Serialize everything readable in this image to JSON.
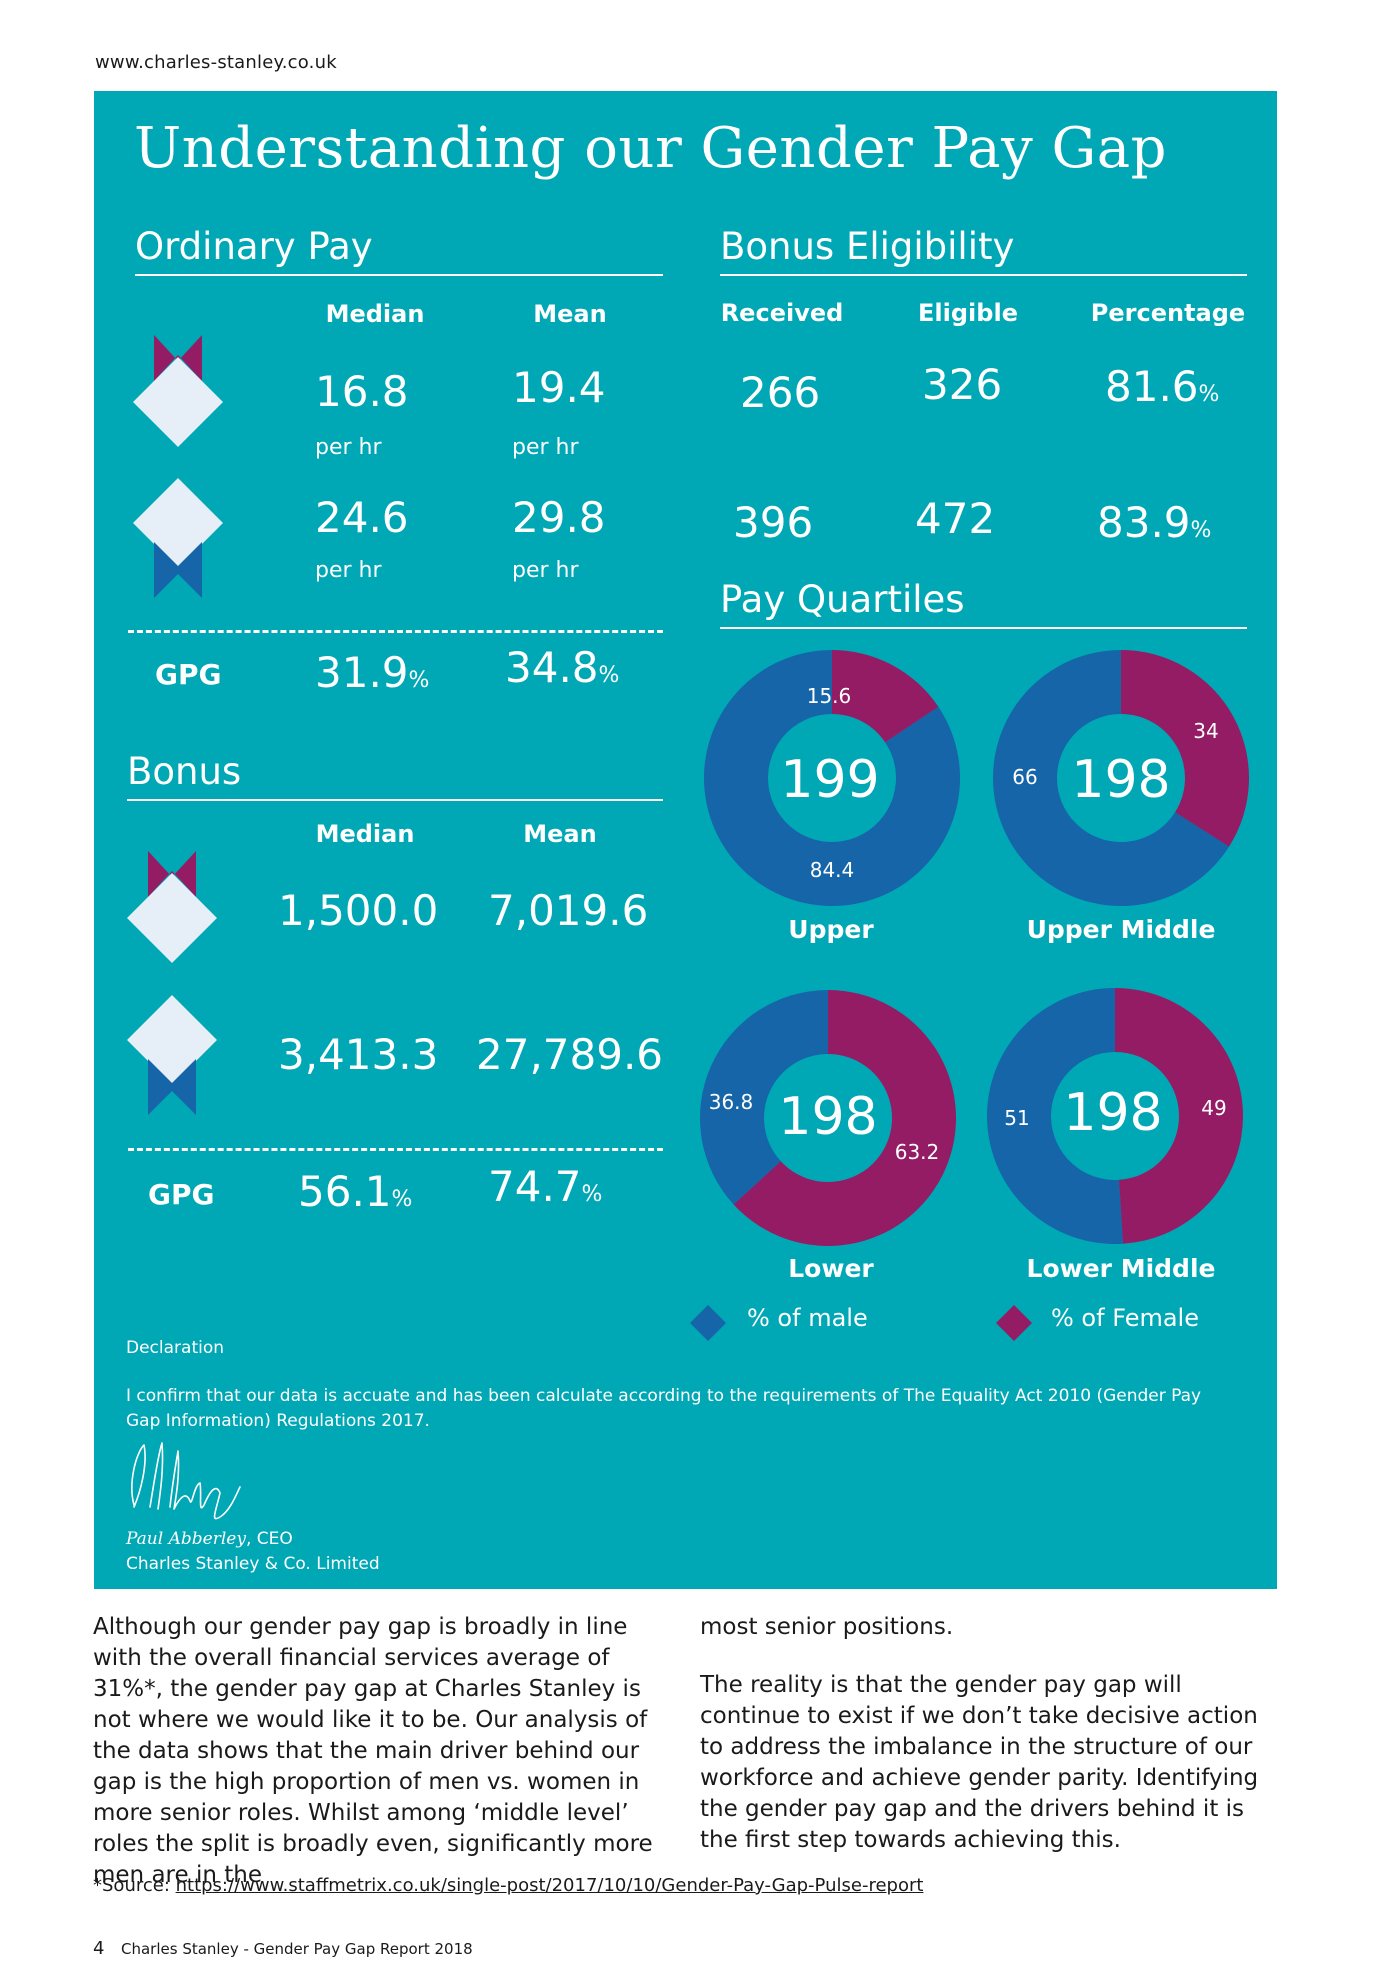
{
  "header": {
    "url": "www.charles-stanley.co.uk"
  },
  "panel": {
    "title": "Understanding our Gender Pay Gap",
    "colors": {
      "teal": "#00a7b5",
      "male_blue": "#1565a8",
      "female_magenta": "#941c64",
      "icon_light": "#e6eef8"
    },
    "ordinary_pay": {
      "heading": "Ordinary Pay",
      "col_median": "Median",
      "col_mean": "Mean",
      "female": {
        "median": "16.8",
        "mean": "19.4",
        "unit": "per hr"
      },
      "male": {
        "median": "24.6",
        "mean": "29.8",
        "unit": "per hr"
      },
      "gpg_label": "GPG",
      "gpg_median": "31.9",
      "gpg_mean": "34.8",
      "pct": "%"
    },
    "bonus": {
      "heading": "Bonus",
      "col_median": "Median",
      "col_mean": "Mean",
      "female": {
        "median": "1,500.0",
        "mean": "7,019.6"
      },
      "male": {
        "median": "3,413.3",
        "mean": "27,789.6"
      },
      "gpg_label": "GPG",
      "gpg_median": "56.1",
      "gpg_mean": "74.7",
      "pct": "%"
    },
    "bonus_eligibility": {
      "heading": "Bonus Eligibility",
      "col_received": "Received",
      "col_eligible": "Eligible",
      "col_percentage": "Percentage",
      "female": {
        "received": "266",
        "eligible": "326",
        "percentage": "81.6"
      },
      "male": {
        "received": "396",
        "eligible": "472",
        "percentage": "83.9"
      },
      "pct": "%"
    },
    "pay_quartiles": {
      "heading": "Pay Quartiles",
      "quartiles": [
        {
          "label": "Upper",
          "total": "199",
          "male": 84.4,
          "female": 15.6,
          "male_text": "84.4",
          "female_text": "15.6"
        },
        {
          "label": "Upper Middle",
          "total": "198",
          "male": 66,
          "female": 34,
          "male_text": "66",
          "female_text": "34"
        },
        {
          "label": "Lower",
          "total": "198",
          "male": 36.8,
          "female": 63.2,
          "male_text": "36.8",
          "female_text": "63.2"
        },
        {
          "label": "Lower Middle",
          "total": "198",
          "male": 51,
          "female": 49,
          "male_text": "51",
          "female_text": "49"
        }
      ],
      "legend_male": "% of  male",
      "legend_female": "% of  Female"
    },
    "declaration": {
      "heading": "Declaration",
      "text": "I confirm that our data is accuate and has been calculate according to the requirements of The Equality Act 2010 (Gender Pay Gap Information) Regulations 2017.",
      "signatory_name": "Paul Abberley",
      "signatory_role": ", CEO",
      "company": "Charles Stanley & Co. Limited"
    }
  },
  "body": {
    "col1": "Although our gender pay gap is broadly in line with the overall financial services average of 31%*, the gender pay gap at Charles Stanley is not where we would like it to be. Our analysis of the data shows that the main driver behind our gap is the high proportion of men vs. women in more senior roles. Whilst among ‘middle level’ roles the split is broadly even, significantly more men are in the",
    "col2_p1": "most senior positions.",
    "col2_p2": "The reality is that the gender pay gap will continue to exist if we don’t take decisive action to address the imbalance in the structure of our workforce and achieve gender parity. Identifying the gender pay gap and the drivers behind it is the first step towards achieving this."
  },
  "footer": {
    "source_label": "*Source: ",
    "source_url": "https://www.staffmetrix.co.uk/single-post/2017/10/10/Gender-Pay-Gap-Pulse-report",
    "page_number": "4",
    "doc_title": "Charles Stanley - Gender Pay Gap Report 2018"
  }
}
